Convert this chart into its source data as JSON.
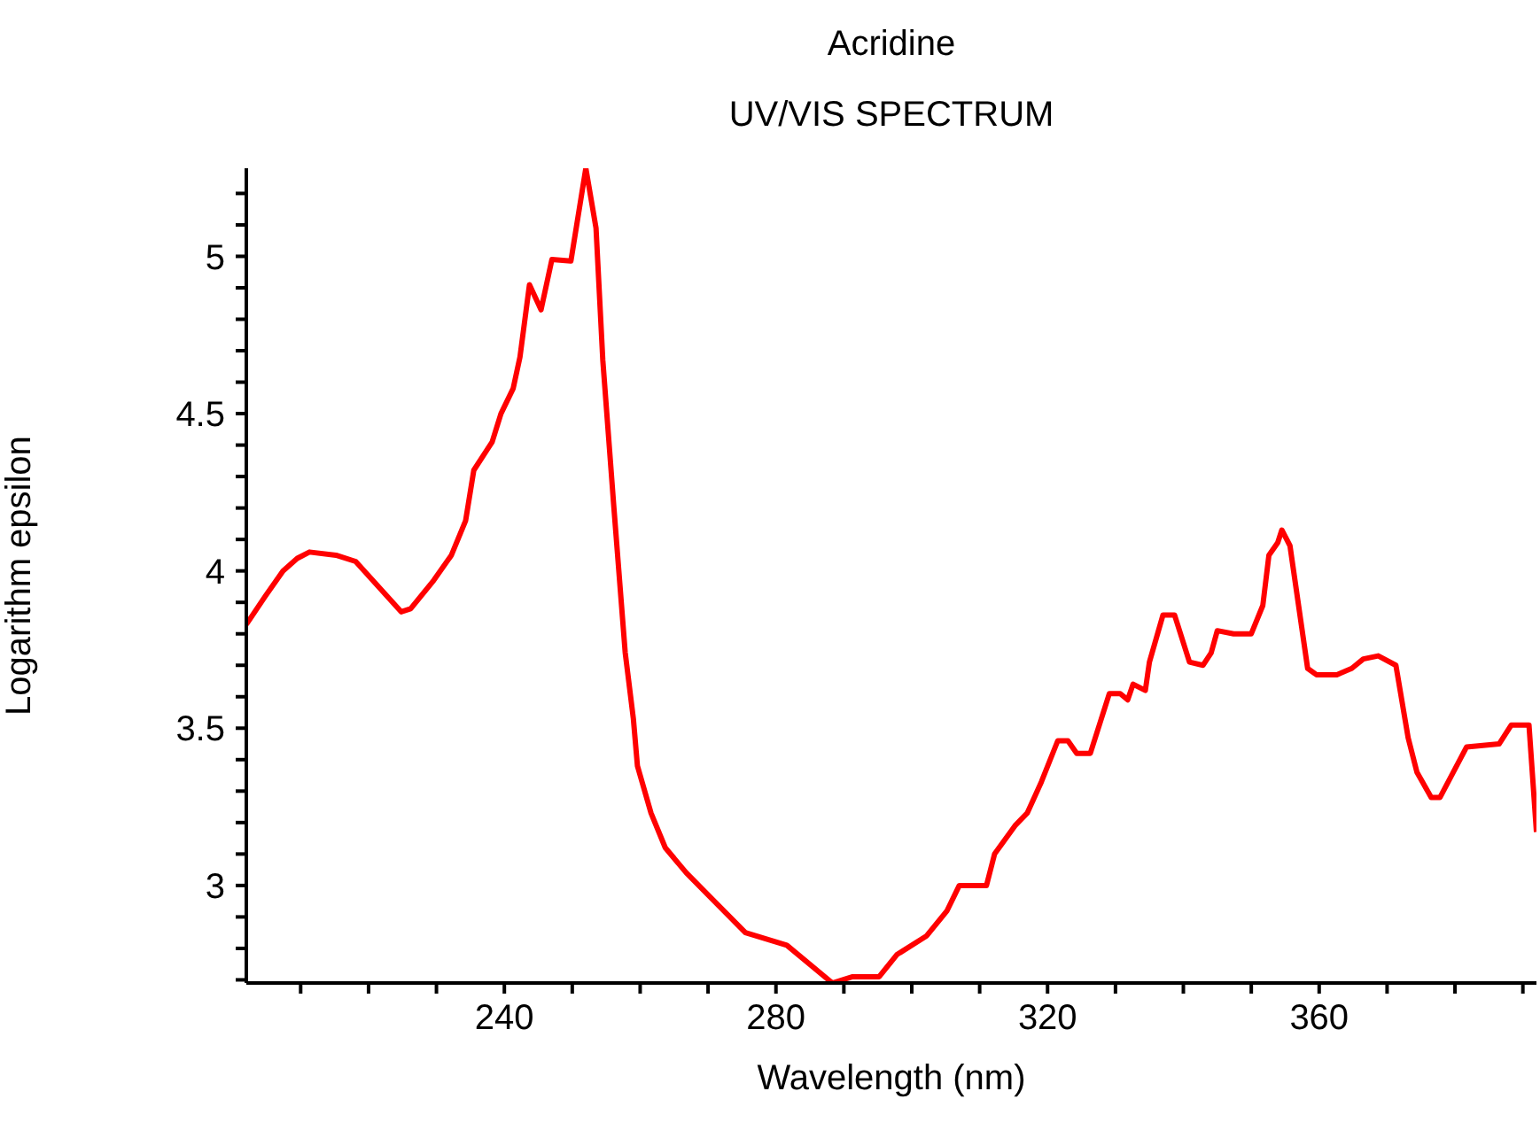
{
  "chart_data": {
    "type": "line",
    "title": "Acridine",
    "subtitle": "UV/VIS SPECTRUM",
    "xlabel": "Wavelength (nm)",
    "ylabel": "Logarithm epsilon",
    "xlim": [
      202,
      392
    ],
    "ylim": [
      2.69,
      5.28
    ],
    "xticks": [
      {
        "value": 210,
        "label": null
      },
      {
        "value": 220,
        "label": null
      },
      {
        "value": 230,
        "label": null
      },
      240,
      {
        "value": 250,
        "label": null
      },
      {
        "value": 260,
        "label": null
      },
      {
        "value": 270,
        "label": null
      },
      280,
      {
        "value": 290,
        "label": null
      },
      {
        "value": 300,
        "label": null
      },
      {
        "value": 310,
        "label": null
      },
      320,
      {
        "value": 330,
        "label": null
      },
      {
        "value": 340,
        "label": null
      },
      {
        "value": 350,
        "label": null
      },
      360,
      {
        "value": 370,
        "label": null
      },
      {
        "value": 380,
        "label": null
      },
      {
        "value": 390,
        "label": null
      }
    ],
    "yticks": [
      {
        "value": 2.7,
        "label": null
      },
      {
        "value": 2.8,
        "label": null
      },
      {
        "value": 2.9,
        "label": null
      },
      3,
      {
        "value": 3.1,
        "label": null
      },
      {
        "value": 3.2,
        "label": null
      },
      {
        "value": 3.3,
        "label": null
      },
      {
        "value": 3.4,
        "label": null
      },
      3.5,
      {
        "value": 3.6,
        "label": null
      },
      {
        "value": 3.7,
        "label": null
      },
      {
        "value": 3.8,
        "label": null
      },
      {
        "value": 3.9,
        "label": null
      },
      4,
      {
        "value": 4.1,
        "label": null
      },
      {
        "value": 4.2,
        "label": null
      },
      {
        "value": 4.3,
        "label": null
      },
      {
        "value": 4.4,
        "label": null
      },
      4.5,
      {
        "value": 4.6,
        "label": null
      },
      {
        "value": 4.7,
        "label": null
      },
      {
        "value": 4.8,
        "label": null
      },
      {
        "value": 4.9,
        "label": null
      },
      5,
      {
        "value": 5.1,
        "label": null
      },
      {
        "value": 5.2,
        "label": null
      }
    ],
    "x": [
      202,
      204.8,
      207.4,
      209.5,
      211.3,
      215.2,
      218.1,
      224.8,
      226.2,
      229.6,
      232.2,
      234.3,
      235.5,
      238.2,
      239.5,
      241.3,
      242.3,
      243.7,
      245.4,
      247.0,
      249.8,
      252.0,
      253.5,
      254.5,
      256.1,
      257.8,
      259.0,
      259.6,
      261.6,
      263.7,
      266.8,
      275.5,
      281.6,
      288.3,
      291.3,
      295.2,
      297.8,
      302.2,
      305.2,
      307.0,
      311.0,
      312.2,
      315.2,
      317.0,
      319.1,
      321.5,
      323.0,
      324.3,
      326.3,
      329.1,
      330.7,
      331.8,
      332.6,
      334.4,
      335.0,
      337.0,
      338.7,
      340.9,
      342.9,
      344.1,
      345.0,
      347.4,
      350.0,
      351.7,
      352.6,
      353.9,
      354.5,
      355.7,
      358.3,
      359.6,
      362.6,
      364.8,
      366.5,
      368.7,
      371.3,
      373.1,
      374.4,
      376.5,
      377.8,
      381.7,
      386.5,
      388.3,
      390.9,
      392
    ],
    "series": [
      {
        "color": "#ff0000",
        "values": [
          3.83,
          3.92,
          4.0,
          4.04,
          4.06,
          4.05,
          4.03,
          3.87,
          3.88,
          3.97,
          4.05,
          4.16,
          4.32,
          4.41,
          4.5,
          4.58,
          4.68,
          4.91,
          4.83,
          4.99,
          4.985,
          5.28,
          5.09,
          4.67,
          4.21,
          3.74,
          3.53,
          3.38,
          3.23,
          3.12,
          3.04,
          2.85,
          2.81,
          2.69,
          2.71,
          2.71,
          2.78,
          2.84,
          2.92,
          3.0,
          3.0,
          3.1,
          3.19,
          3.23,
          3.33,
          3.46,
          3.46,
          3.42,
          3.42,
          3.61,
          3.61,
          3.59,
          3.64,
          3.62,
          3.71,
          3.86,
          3.86,
          3.71,
          3.7,
          3.74,
          3.81,
          3.8,
          3.8,
          3.89,
          4.05,
          4.09,
          4.13,
          4.08,
          3.69,
          3.67,
          3.67,
          3.69,
          3.72,
          3.73,
          3.7,
          3.47,
          3.36,
          3.28,
          3.28,
          3.44,
          3.45,
          3.51,
          3.51,
          3.17
        ]
      }
    ]
  }
}
